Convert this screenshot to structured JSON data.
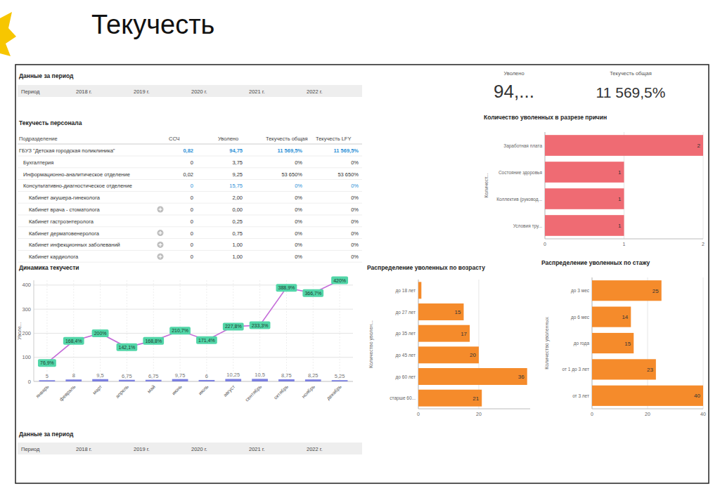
{
  "title": "Текучесть",
  "period_filters": [
    {
      "title": "Данные за период",
      "label": "Период",
      "options": [
        "2018 г.",
        "2019 г.",
        "2020 г.",
        "2021 г.",
        "2022 г."
      ]
    },
    {
      "title": "Данные за период",
      "label": "Период",
      "options": [
        "2018 г.",
        "2019 г.",
        "2020 г.",
        "2021 г.",
        "2022 г."
      ]
    }
  ],
  "kpis": [
    {
      "label": "Уволено",
      "value": "94,..."
    },
    {
      "label": "Текучесть общая",
      "value": "11 569,5%"
    }
  ],
  "table": {
    "title": "Текучесть персонала",
    "columns": [
      "Подразделение",
      "ССЧ",
      "Уволено",
      "Текучесть общая",
      "Текучесть LFY"
    ],
    "rows": [
      [
        "ГБУЗ \"Детская городская поликлиника\"",
        "0,82",
        "94,75",
        "11 569,5%",
        "11 569,5%"
      ],
      [
        "Бухгалтерия",
        "0",
        "3,75",
        "0%",
        "0%"
      ],
      [
        "Информационно-аналитическое отделение",
        "0,02",
        "9,25",
        "53 650%",
        "53 650%"
      ],
      [
        "Консультативно-диагностическое отделение",
        "0",
        "15,75",
        "0%",
        "0%"
      ],
      [
        "Кабинет акушера-гинеколога",
        "0",
        "2,00",
        "0%",
        "0%"
      ],
      [
        "Кабинет врача - стоматолога",
        "0",
        "0,00",
        "0%",
        "0%"
      ],
      [
        "Кабинет гастроэнтеролога",
        "0",
        "0,25",
        "0%",
        "0%"
      ],
      [
        "Кабинет дерматовенеролога",
        "0",
        "0,75",
        "0%",
        "0%"
      ],
      [
        "Кабинет инфекционных заболеваний",
        "0",
        "1,00",
        "0%",
        "0%"
      ],
      [
        "Кабинет кардиолога",
        "0",
        "1,00",
        "0%",
        "0%"
      ]
    ]
  },
  "chart_data": [
    {
      "type": "bar",
      "orientation": "horizontal",
      "title": "Количество уволенных в разрезе причин",
      "y_label": "Количест...",
      "categories": [
        "Заработная плата",
        "Состояние здоровья",
        "Коллектив (руковод...",
        "Условия тру..."
      ],
      "values": [
        2,
        1,
        1,
        1
      ],
      "color": "#ef6b73",
      "data_labels": true,
      "xlim": [
        0,
        2
      ],
      "xticks": [
        0,
        1,
        2
      ],
      "grid": true
    },
    {
      "type": "line",
      "title": "Динамика текучести",
      "y_label": "Уволе...",
      "categories": [
        "январь",
        "февраль",
        "март",
        "апрель",
        "май",
        "июнь",
        "июль",
        "август",
        "сентябрь",
        "октябрь",
        "ноябрь",
        "декабрь"
      ],
      "ylim": [
        0,
        420
      ],
      "yticks": [
        0,
        100,
        200,
        300,
        400
      ],
      "grid": true,
      "series": [
        {
          "type": "bar",
          "color": "#7b7fe0",
          "data_labels": true,
          "values": [
            5,
            8,
            9.5,
            6.75,
            6.75,
            9.75,
            6,
            10.25,
            10.5,
            8.75,
            8.25,
            5.25
          ],
          "value_labels": [
            "5",
            "8",
            "9,5",
            "6,75",
            "6,75",
            "9,75",
            "6",
            "10,25",
            "10,5",
            "8,75",
            "8,25",
            "5,25"
          ]
        },
        {
          "type": "line",
          "color": "#c46bd8",
          "data_labels": true,
          "values": [
            76.9,
            168.4,
            200,
            142.1,
            168.8,
            210.7,
            171.4,
            227.8,
            233.3,
            388.9,
            366.7,
            420
          ],
          "value_labels": [
            "76,9%",
            "168,4%",
            "200%",
            "142,1%",
            "168,8%",
            "210,7%",
            "171,4%",
            "227,8%",
            "233,3%",
            "388,9%",
            "366,7%",
            "420%"
          ]
        }
      ]
    },
    {
      "type": "bar",
      "orientation": "horizontal",
      "title": "Распределение уволенных по возрасту",
      "y_label": "Количество уволен...",
      "categories": [
        "до 18 лет",
        "до 27 лет",
        "до 35 лет",
        "до 45 лет",
        "до 60 лет",
        "старше 60..."
      ],
      "values": [
        1,
        15,
        17,
        20,
        36,
        21
      ],
      "value_labels": [
        null,
        "15",
        "17",
        "20",
        "36",
        "21"
      ],
      "color": "#f58b2b",
      "data_labels": true,
      "xlim": [
        0,
        37
      ],
      "xticks": [
        0,
        20
      ],
      "grid": true
    },
    {
      "type": "bar",
      "orientation": "horizontal",
      "title": "Распределение уволенных по стажу",
      "y_label": "Количество уволенных",
      "categories": [
        "до 3 мес",
        "до 6 мес",
        "до года",
        "от 1 до 3 лет",
        "от 3 лет"
      ],
      "values": [
        25,
        14,
        15,
        23,
        40
      ],
      "color": "#f58b2b",
      "data_labels": true,
      "xlim": [
        0,
        40
      ],
      "xticks": [
        0,
        20,
        40
      ],
      "grid": true
    }
  ]
}
